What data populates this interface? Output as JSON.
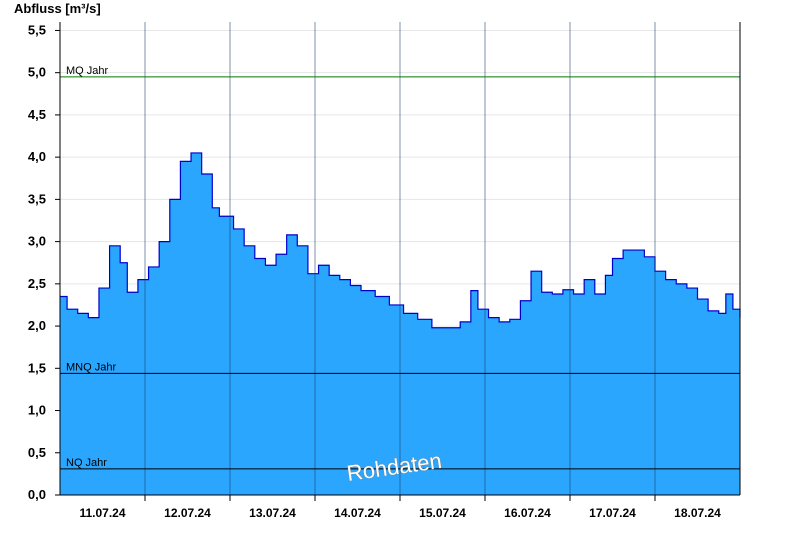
{
  "chart_data": {
    "type": "area",
    "ylabel": "Abfluss [m³/s]",
    "ylim": [
      0,
      5.6
    ],
    "yticks": [
      "0,0",
      "0,5",
      "1,0",
      "1,5",
      "2,0",
      "2,5",
      "3,0",
      "3,5",
      "4,0",
      "4,5",
      "5,0",
      "5,5"
    ],
    "xlim_days": [
      "10.07.24 12:00",
      "18.07.24 12:00"
    ],
    "xticks": [
      "11.07.24",
      "12.07.24",
      "13.07.24",
      "14.07.24",
      "15.07.24",
      "16.07.24",
      "17.07.24",
      "18.07.24"
    ],
    "day_separators": [
      "11.07.24 12:00",
      "12.07.24 12:00",
      "13.07.24 12:00",
      "14.07.24 12:00",
      "15.07.24 12:00",
      "16.07.24 12:00",
      "17.07.24 12:00"
    ],
    "grid": "horizontal",
    "series": [
      {
        "name": "",
        "color": "#2ba6ff",
        "line_color": "#0000cc",
        "x": [
          "10.07.24 12:00",
          "10.07.24 14:00",
          "10.07.24 17:00",
          "10.07.24 20:00",
          "10.07.24 23:00",
          "11.07.24 02:00",
          "11.07.24 05:00",
          "11.07.24 07:00",
          "11.07.24 10:00",
          "11.07.24 13:00",
          "11.07.24 16:00",
          "11.07.24 19:00",
          "11.07.24 22:00",
          "12.07.24 01:00",
          "12.07.24 04:00",
          "12.07.24 07:00",
          "12.07.24 09:00",
          "12.07.24 11:00",
          "12.07.24 13:00",
          "12.07.24 16:00",
          "12.07.24 19:00",
          "12.07.24 22:00",
          "13.07.24 01:00",
          "13.07.24 04:00",
          "13.07.24 07:00",
          "13.07.24 10:00",
          "13.07.24 13:00",
          "13.07.24 16:00",
          "13.07.24 19:00",
          "13.07.24 22:00",
          "14.07.24 01:00",
          "14.07.24 05:00",
          "14.07.24 09:00",
          "14.07.24 13:00",
          "14.07.24 17:00",
          "14.07.24 21:00",
          "15.07.24 01:00",
          "15.07.24 05:00",
          "15.07.24 08:00",
          "15.07.24 10:00",
          "15.07.24 13:00",
          "15.07.24 16:00",
          "15.07.24 19:00",
          "15.07.24 22:00",
          "16.07.24 01:00",
          "16.07.24 04:00",
          "16.07.24 07:00",
          "16.07.24 10:00",
          "16.07.24 13:00",
          "16.07.24 16:00",
          "16.07.24 19:00",
          "16.07.24 22:00",
          "17.07.24 00:00",
          "17.07.24 03:00",
          "17.07.24 06:00",
          "17.07.24 09:00",
          "17.07.24 12:00",
          "17.07.24 15:00",
          "17.07.24 18:00",
          "17.07.24 21:00",
          "18.07.24 00:00",
          "18.07.24 03:00",
          "18.07.24 06:00",
          "18.07.24 08:00",
          "18.07.24 10:00",
          "18.07.24 12:00"
        ],
        "values": [
          2.35,
          2.2,
          2.15,
          2.1,
          2.45,
          2.95,
          2.75,
          2.4,
          2.55,
          2.7,
          3.0,
          3.5,
          3.95,
          4.05,
          3.8,
          3.4,
          3.3,
          3.3,
          3.15,
          2.95,
          2.8,
          2.72,
          2.85,
          3.08,
          2.95,
          2.62,
          2.72,
          2.6,
          2.55,
          2.48,
          2.42,
          2.35,
          2.25,
          2.15,
          2.08,
          1.98,
          1.98,
          2.05,
          2.42,
          2.2,
          2.1,
          2.05,
          2.08,
          2.3,
          2.65,
          2.4,
          2.38,
          2.43,
          2.38,
          2.55,
          2.38,
          2.6,
          2.8,
          2.9,
          2.9,
          2.82,
          2.65,
          2.55,
          2.5,
          2.45,
          2.32,
          2.18,
          2.15,
          2.38,
          2.2,
          2.1
        ]
      }
    ],
    "reference_lines": [
      {
        "label": "MQ Jahr",
        "value": 4.95,
        "color": "#007a00"
      },
      {
        "label": "MNQ Jahr",
        "value": 1.44,
        "color": "#000000"
      },
      {
        "label": "NQ Jahr",
        "value": 0.31,
        "color": "#000000"
      }
    ],
    "watermark": "Rohdaten"
  }
}
